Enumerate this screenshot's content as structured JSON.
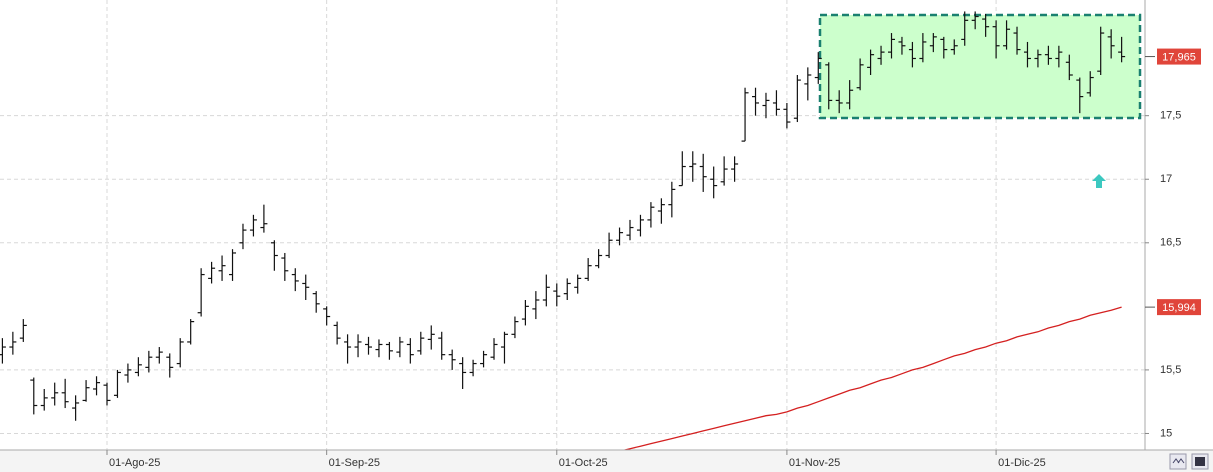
{
  "chart_data": {
    "type": "ohlc",
    "ylim": [
      14.87,
      18.41
    ],
    "yticks": [
      15,
      {
        "value": 15.5,
        "label": "15,5"
      },
      {
        "value": 16.5,
        "label": "16,5"
      },
      17,
      {
        "value": 17.5,
        "label": "17,5"
      }
    ],
    "xticks": [
      {
        "value": 10,
        "label": "01-Ago-25"
      },
      {
        "value": 31,
        "label": "01-Sep-25"
      },
      {
        "value": 53,
        "label": "01-Oct-25"
      },
      {
        "value": 75,
        "label": "01-Nov-25"
      },
      {
        "value": 95,
        "label": "01-Dic-25"
      }
    ],
    "grid": true,
    "ohlc": {
      "color": "#111111",
      "label_color": "#e0453a",
      "open": [
        15.62,
        15.68,
        15.75,
        15.42,
        15.22,
        15.28,
        15.32,
        15.2,
        15.26,
        15.35,
        15.38,
        15.3,
        15.46,
        15.48,
        15.52,
        15.6,
        15.6,
        15.55,
        15.72,
        15.95,
        16.22,
        16.28,
        16.25,
        16.5,
        16.6,
        16.62,
        16.5,
        16.38,
        16.25,
        16.18,
        16.1,
        15.98,
        15.85,
        15.72,
        15.68,
        15.7,
        15.66,
        15.7,
        15.64,
        15.7,
        15.65,
        15.74,
        15.75,
        15.62,
        15.55,
        15.48,
        15.55,
        15.6,
        15.68,
        15.78,
        15.9,
        15.98,
        16.05,
        16.12,
        16.1,
        16.15,
        16.22,
        16.32,
        16.4,
        16.52,
        16.56,
        16.6,
        16.68,
        16.75,
        16.8,
        16.95,
        17.1,
        17.1,
        17.0,
        16.98,
        17.08,
        17.3,
        17.65,
        17.58,
        17.6,
        17.55,
        17.48,
        17.75,
        17.8,
        17.9,
        17.62,
        17.6,
        17.72,
        17.88,
        17.95,
        18.0,
        18.08,
        18.02,
        17.95,
        18.05,
        18.1,
        18.02,
        18.1,
        18.25,
        18.26,
        18.2,
        18.05,
        18.15,
        18.0,
        17.95,
        17.98,
        17.95,
        17.92,
        17.78,
        17.68,
        17.85,
        18.12,
        18.0
      ],
      "high": [
        15.75,
        15.8,
        15.9,
        15.44,
        15.35,
        15.4,
        15.43,
        15.3,
        15.42,
        15.45,
        15.4,
        15.5,
        15.55,
        15.6,
        15.65,
        15.68,
        15.63,
        15.75,
        15.9,
        16.3,
        16.35,
        16.4,
        16.45,
        16.65,
        16.72,
        16.8,
        16.52,
        16.42,
        16.3,
        16.25,
        16.12,
        16.0,
        15.88,
        15.78,
        15.78,
        15.76,
        15.74,
        15.72,
        15.76,
        15.75,
        15.8,
        15.85,
        15.8,
        15.66,
        15.6,
        15.58,
        15.65,
        15.75,
        15.8,
        15.92,
        16.05,
        16.12,
        16.25,
        16.18,
        16.22,
        16.25,
        16.38,
        16.45,
        16.58,
        16.62,
        16.68,
        16.72,
        16.82,
        16.85,
        16.98,
        17.22,
        17.22,
        17.2,
        17.1,
        17.18,
        17.18,
        17.72,
        17.72,
        17.68,
        17.7,
        17.6,
        17.82,
        17.88,
        18.0,
        17.92,
        17.7,
        17.78,
        17.95,
        18.02,
        18.05,
        18.15,
        18.12,
        18.08,
        18.15,
        18.15,
        18.12,
        18.1,
        18.32,
        18.32,
        18.3,
        18.25,
        18.25,
        18.2,
        18.08,
        18.02,
        18.05,
        18.05,
        17.98,
        17.8,
        17.85,
        18.2,
        18.18,
        18.12
      ],
      "low": [
        15.55,
        15.62,
        15.72,
        15.15,
        15.18,
        15.22,
        15.2,
        15.1,
        15.25,
        15.3,
        15.22,
        15.28,
        15.4,
        15.45,
        15.48,
        15.55,
        15.44,
        15.52,
        15.7,
        15.92,
        16.18,
        16.2,
        16.2,
        16.45,
        16.55,
        16.58,
        16.28,
        16.2,
        16.12,
        16.05,
        15.95,
        15.85,
        15.7,
        15.55,
        15.6,
        15.62,
        15.6,
        15.58,
        15.6,
        15.55,
        15.62,
        15.66,
        15.58,
        15.5,
        15.35,
        15.45,
        15.52,
        15.58,
        15.55,
        15.75,
        15.85,
        15.9,
        16.0,
        16.0,
        16.05,
        16.1,
        16.2,
        16.3,
        16.38,
        16.48,
        16.52,
        16.55,
        16.62,
        16.65,
        16.7,
        16.95,
        16.98,
        16.9,
        16.85,
        16.95,
        16.98,
        17.3,
        17.5,
        17.48,
        17.5,
        17.4,
        17.45,
        17.62,
        17.75,
        17.55,
        17.52,
        17.55,
        17.7,
        17.82,
        17.9,
        17.95,
        17.98,
        17.88,
        17.92,
        18.0,
        17.95,
        17.98,
        18.05,
        18.18,
        18.12,
        17.95,
        18.02,
        17.98,
        17.88,
        17.88,
        17.9,
        17.88,
        17.78,
        17.52,
        17.65,
        17.82,
        17.95,
        17.92
      ],
      "close": [
        15.68,
        15.72,
        15.85,
        15.22,
        15.28,
        15.32,
        15.25,
        15.24,
        15.36,
        15.4,
        15.26,
        15.48,
        15.5,
        15.54,
        15.6,
        15.64,
        15.52,
        15.72,
        15.88,
        16.25,
        16.3,
        16.32,
        16.42,
        16.6,
        16.68,
        16.65,
        16.4,
        16.28,
        16.2,
        16.15,
        16.02,
        15.92,
        15.75,
        15.68,
        15.72,
        15.68,
        15.7,
        15.65,
        15.72,
        15.62,
        15.75,
        15.78,
        15.62,
        15.58,
        15.48,
        15.55,
        15.62,
        15.7,
        15.78,
        15.88,
        16.0,
        16.05,
        16.15,
        16.08,
        16.18,
        16.22,
        16.32,
        16.4,
        16.52,
        16.58,
        16.62,
        16.68,
        16.78,
        16.8,
        16.92,
        17.1,
        17.12,
        17.02,
        16.95,
        17.08,
        17.12,
        17.68,
        17.6,
        17.62,
        17.55,
        17.45,
        17.78,
        17.82,
        17.95,
        17.62,
        17.6,
        17.7,
        17.9,
        17.98,
        18.0,
        18.1,
        18.05,
        17.95,
        18.08,
        18.12,
        18.02,
        18.05,
        18.25,
        18.28,
        18.2,
        18.05,
        18.18,
        18.02,
        17.95,
        17.98,
        17.95,
        18.0,
        17.82,
        17.65,
        17.8,
        18.15,
        18.05,
        17.965
      ],
      "value_labels": {
        "107": "17,965"
      }
    },
    "lines": [
      {
        "color": "#d42020",
        "label_color": "#e0453a",
        "values": [
          null,
          null,
          null,
          null,
          null,
          null,
          null,
          null,
          null,
          null,
          null,
          null,
          null,
          null,
          null,
          null,
          null,
          null,
          null,
          null,
          null,
          null,
          null,
          null,
          null,
          null,
          null,
          null,
          null,
          null,
          null,
          null,
          null,
          null,
          null,
          null,
          null,
          null,
          null,
          null,
          null,
          null,
          null,
          null,
          null,
          null,
          null,
          null,
          null,
          null,
          null,
          null,
          null,
          null,
          null,
          null,
          null,
          null,
          null,
          14.86,
          14.88,
          14.9,
          14.92,
          14.94,
          14.96,
          14.98,
          15.0,
          15.02,
          15.04,
          15.06,
          15.08,
          15.1,
          15.12,
          15.14,
          15.15,
          15.17,
          15.2,
          15.22,
          15.25,
          15.28,
          15.31,
          15.34,
          15.36,
          15.39,
          15.42,
          15.44,
          15.47,
          15.5,
          15.52,
          15.55,
          15.58,
          15.61,
          15.63,
          15.66,
          15.68,
          15.71,
          15.73,
          15.76,
          15.78,
          15.8,
          15.83,
          15.85,
          15.88,
          15.9,
          15.93,
          15.95,
          15.97,
          15.994
        ],
        "value_labels": {
          "107": "15,994"
        }
      }
    ]
  }
}
